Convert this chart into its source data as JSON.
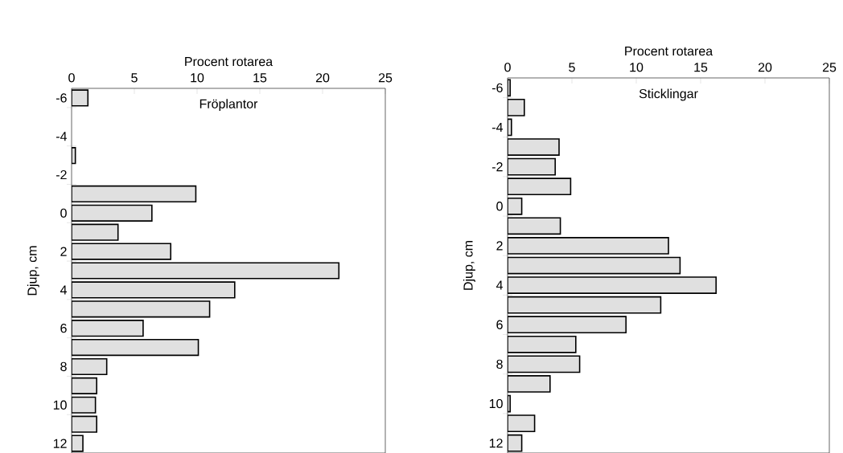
{
  "chart_data": [
    {
      "type": "bar",
      "orientation": "horizontal",
      "title": "Fröplantor",
      "xlabel": "Procent rotarea",
      "ylabel": "Djup, cm",
      "categories": [
        "-6",
        null,
        "-4",
        null,
        "-2",
        null,
        "0",
        null,
        "2",
        null,
        "4",
        null,
        "6",
        null,
        "8",
        null,
        "10",
        null,
        "12"
      ],
      "values": [
        1.3,
        null,
        null,
        0.3,
        null,
        9.9,
        6.4,
        3.7,
        7.9,
        21.3,
        13.0,
        11.0,
        5.7,
        10.1,
        2.8,
        2.0,
        1.9,
        2.0,
        0.9
      ],
      "color": "#e0e0e0",
      "xlim": [
        0,
        25
      ],
      "xticks": [
        0,
        5,
        10,
        15,
        20,
        25
      ]
    },
    {
      "type": "bar",
      "orientation": "horizontal",
      "title": "Sticklingar",
      "xlabel": "Procent rotarea",
      "ylabel": "Djup, cm",
      "categories": [
        "-6",
        null,
        "-4",
        null,
        "-2",
        null,
        "0",
        null,
        "2",
        null,
        "4",
        null,
        "6",
        null,
        "8",
        null,
        "10",
        null,
        "12"
      ],
      "values": [
        0.2,
        1.3,
        0.3,
        4.0,
        3.7,
        4.9,
        1.1,
        4.1,
        12.5,
        13.4,
        16.2,
        11.9,
        9.2,
        5.3,
        5.6,
        3.3,
        0.2,
        2.1,
        1.1
      ],
      "color": "#e0e0e0",
      "xlim": [
        0,
        25
      ],
      "xticks": [
        0,
        5,
        10,
        15,
        20,
        25
      ]
    }
  ]
}
